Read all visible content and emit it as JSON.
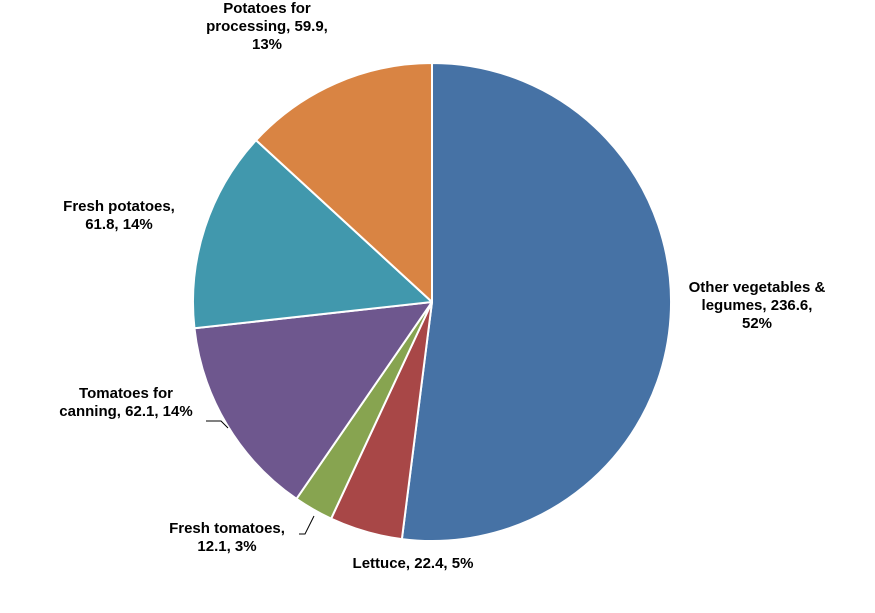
{
  "chart_data": {
    "type": "pie",
    "title": "",
    "slices": [
      {
        "name": "Other vegetables & legumes",
        "value": 236.6,
        "percent": "52%",
        "color": "#4672A5",
        "label_lines": [
          "Other vegetables &",
          "legumes, 236.6,",
          "52%"
        ]
      },
      {
        "name": "Lettuce",
        "value": 22.4,
        "percent": "5%",
        "color": "#A84747",
        "label_lines": [
          "Lettuce, 22.4, 5%"
        ]
      },
      {
        "name": "Fresh tomatoes",
        "value": 12.1,
        "percent": "3%",
        "color": "#87A450",
        "label_lines": [
          "Fresh tomatoes,",
          "12.1, 3%"
        ]
      },
      {
        "name": "Tomatoes for canning",
        "value": 62.1,
        "percent": "14%",
        "color": "#6E578E",
        "label_lines": [
          "Tomatoes for",
          "canning, 62.1, 14%"
        ]
      },
      {
        "name": "Fresh potatoes",
        "value": 61.8,
        "percent": "14%",
        "color": "#4198AD",
        "label_lines": [
          "Fresh potatoes,",
          "61.8,  14%"
        ]
      },
      {
        "name": "Potatoes for processing",
        "value": 59.9,
        "percent": "13%",
        "color": "#D98443",
        "label_lines": [
          "Potatoes for",
          "processing, 59.9,",
          "13%"
        ]
      }
    ],
    "start_angle": "12 o'clock",
    "direction": "clockwise",
    "legend": "none"
  }
}
